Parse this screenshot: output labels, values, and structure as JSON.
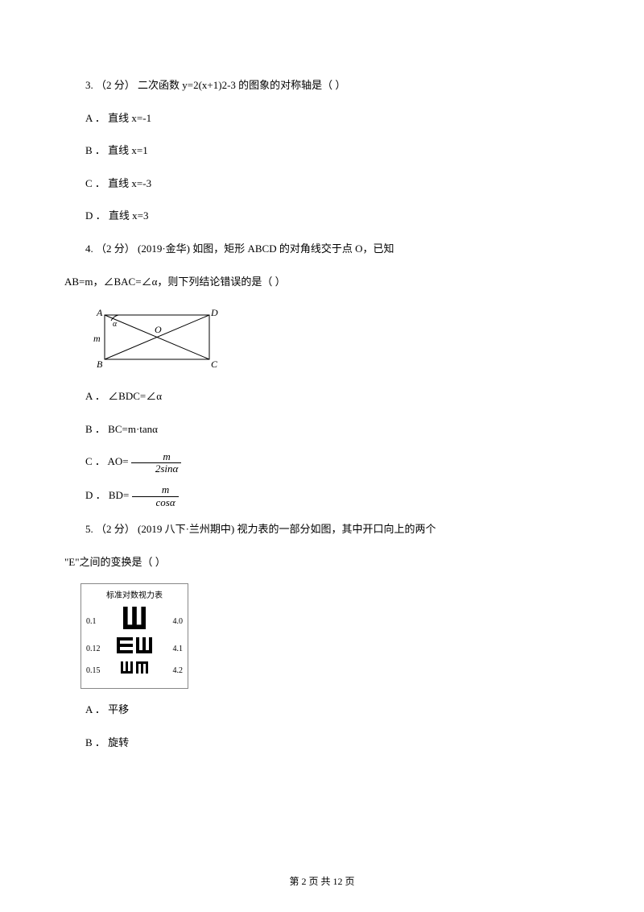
{
  "q3": {
    "stem": "3.   （2 分）   二次函数 y=2(x+1)2-3 的图象的对称轴是（        ）",
    "a": "A ．  直线 x=-1",
    "b": "B ．  直线 x=1",
    "c": "C ．  直线 x=-3",
    "d": "D ．  直线 x=3"
  },
  "q4": {
    "stem1": "4.        （2 分）        (2019·金华)            如图，矩形 ABCD 的对角线交于点 O，已知",
    "stem2": "AB=m，∠BAC=∠α，则下列结论错误的是（        ）",
    "a": "A ．  ∠BDC=∠α",
    "b": "B ．  BC=m·tanα",
    "c_pre": "C ．  AO= ",
    "c_num": "m",
    "c_den": "2sinα",
    "d_pre": "D ．  BD= ",
    "d_num": "m",
    "d_den": "cosα",
    "rect": {
      "labels": {
        "A": "A",
        "B": "B",
        "C": "C",
        "D": "D",
        "O": "O",
        "m": "m",
        "alpha": "α"
      },
      "stroke": "#000000"
    }
  },
  "q5": {
    "stem1": "5.    （2 分）    (2019 八下·兰州期中)      视力表的一部分如图，其中开口向上的两个",
    "stem2": "\"E\"之间的变换是（        ）",
    "a": "A ．  平移",
    "b": "B ．  旋转"
  },
  "eye": {
    "title": "标准对数视力表",
    "rows": [
      {
        "left": "0.1",
        "right": "4.0",
        "dirs": [
          "up"
        ],
        "size": 28
      },
      {
        "left": "0.12",
        "right": "4.1",
        "dirs": [
          "right",
          "up"
        ],
        "size": 20
      },
      {
        "left": "0.15",
        "right": "4.2",
        "dirs": [
          "up",
          "down"
        ],
        "size": 15
      }
    ],
    "color": "#000000"
  },
  "footer": "第  2  页  共  12  页"
}
